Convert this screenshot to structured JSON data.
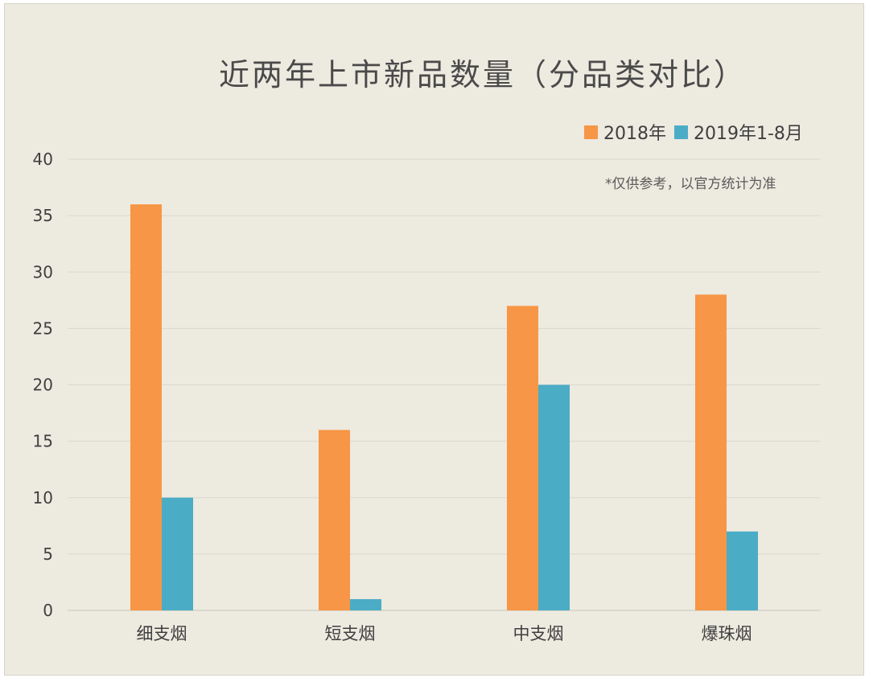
{
  "chart_data": {
    "type": "bar",
    "title": "近两年上市新品数量（分品类对比）",
    "note": "*仅供参考，以官方统计为准",
    "categories": [
      "细支烟",
      "短支烟",
      "中支烟",
      "爆珠烟"
    ],
    "series": [
      {
        "name": "2018年",
        "values": [
          36,
          16,
          27,
          28
        ],
        "color": "#f79646"
      },
      {
        "name": "2019年1-8月",
        "values": [
          10,
          1,
          20,
          7
        ],
        "color": "#4bacc6"
      }
    ],
    "ylim": [
      0,
      40
    ],
    "yticks": [
      0,
      5,
      10,
      15,
      20,
      25,
      30,
      35,
      40
    ],
    "grid": true,
    "legend_position": "top-right",
    "xlabel": "",
    "ylabel": ""
  }
}
